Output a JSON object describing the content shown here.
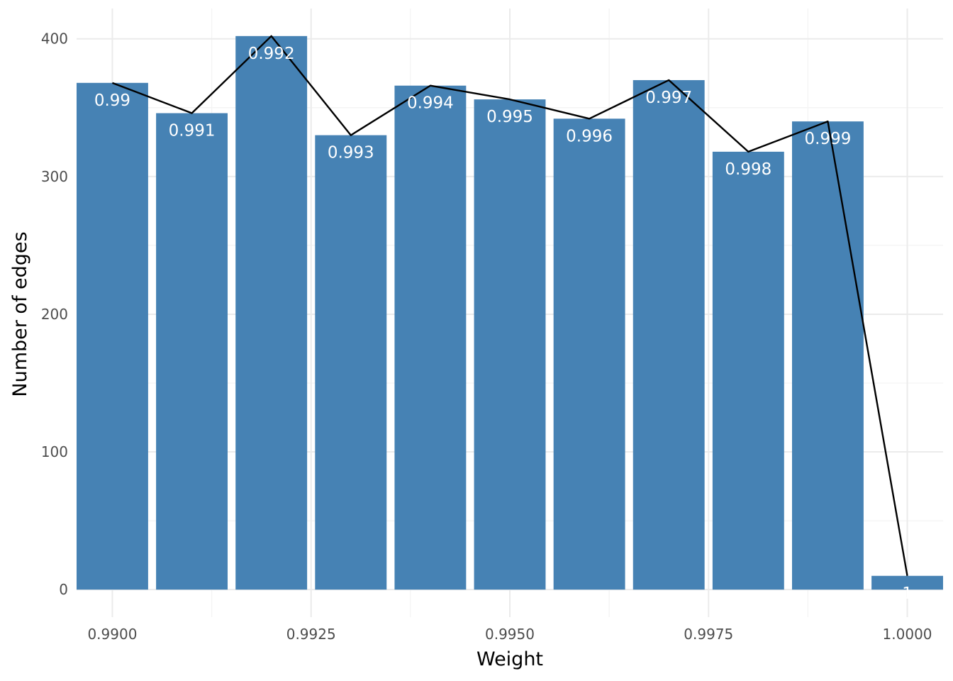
{
  "chart_data": {
    "type": "bar",
    "title": "",
    "xlabel": "Weight",
    "ylabel": "Number of edges",
    "x": [
      0.99,
      0.991,
      0.992,
      0.993,
      0.994,
      0.995,
      0.996,
      0.997,
      0.998,
      0.999,
      1.0
    ],
    "values": [
      368,
      346,
      402,
      330,
      366,
      356,
      342,
      370,
      318,
      340,
      10
    ],
    "bar_labels": [
      "0.99",
      "0.991",
      "0.992",
      "0.993",
      "0.994",
      "0.995",
      "0.996",
      "0.997",
      "0.998",
      "0.999",
      "1"
    ],
    "overlay_line": {
      "type": "line",
      "values": [
        368,
        346,
        402,
        330,
        366,
        356,
        342,
        370,
        318,
        340,
        10
      ],
      "color": "#000000"
    },
    "xlim": [
      0.98955,
      1.00045
    ],
    "ylim": [
      -20,
      422
    ],
    "x_ticks": [
      0.99,
      0.9925,
      0.995,
      0.9975,
      1.0
    ],
    "x_tick_labels": [
      "0.9900",
      "0.9925",
      "0.9950",
      "0.9975",
      "1.0000"
    ],
    "y_ticks": [
      0,
      100,
      200,
      300,
      400
    ],
    "y_tick_labels": [
      "0",
      "100",
      "200",
      "300",
      "400"
    ],
    "grid": true,
    "legend": "none",
    "bar_color": "#4682b4"
  }
}
